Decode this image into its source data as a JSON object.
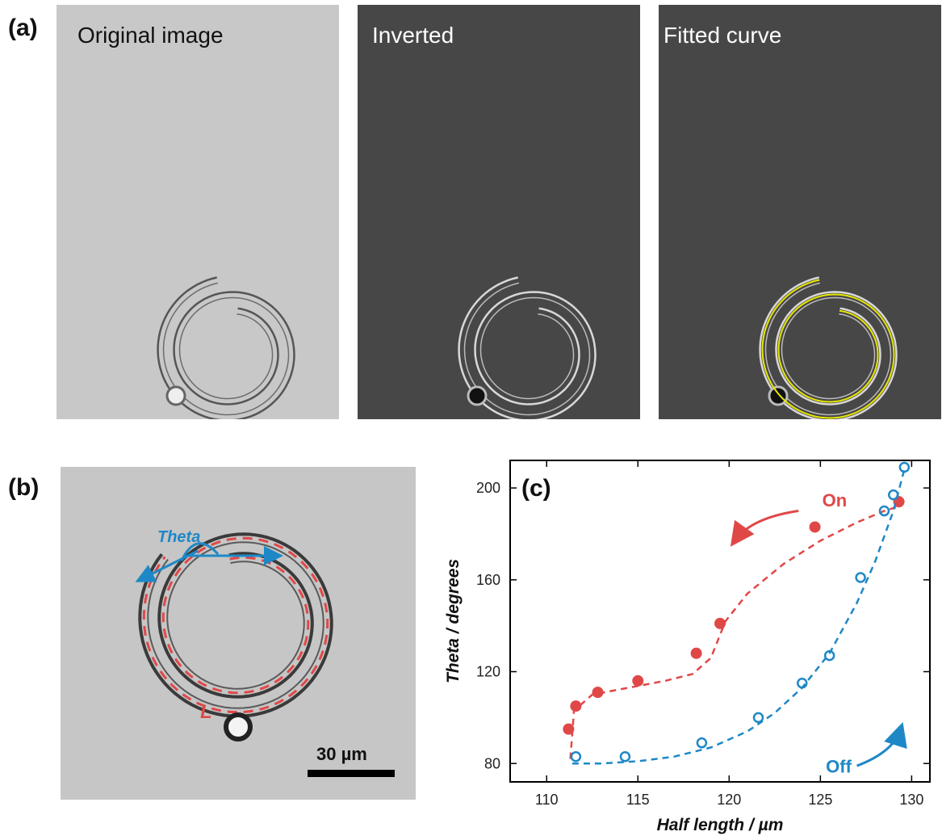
{
  "panel_a": {
    "label": "(a)",
    "images": [
      {
        "title": "Original image",
        "bg": "#c8c8c8",
        "title_color": "#111111",
        "line_color": "#555555"
      },
      {
        "title": "Inverted",
        "bg": "#474747",
        "title_color": "#ffffff",
        "line_color": "#d8d8d8"
      },
      {
        "title": "Fitted curve",
        "bg": "#474747",
        "title_color": "#ffffff",
        "line_color": "#d8d8d8",
        "fit_color": "#e8e800"
      }
    ]
  },
  "panel_b": {
    "label": "(b)",
    "theta_label": "Theta",
    "length_label": "L",
    "scale_bar": "30 µm",
    "bg": "#c6c6c6",
    "arrow_color": "#1e88c7",
    "dash_color": "#e04848"
  },
  "panel_c": {
    "label": "(c)"
  },
  "chart_data": {
    "type": "scatter",
    "xlabel": "Half length  / µm",
    "ylabel": "Theta  / degrees",
    "xlim": [
      108,
      131
    ],
    "ylim": [
      72,
      212
    ],
    "xticks": [
      110,
      115,
      120,
      125,
      130
    ],
    "yticks": [
      80,
      120,
      160,
      200
    ],
    "grid": false,
    "series": [
      {
        "name": "On",
        "color": "#e04848",
        "marker": "filled-circle",
        "x": [
          111.2,
          111.6,
          112.8,
          115.0,
          118.2,
          119.5,
          124.7,
          129.3
        ],
        "y": [
          95,
          105,
          111,
          116,
          128,
          141,
          183,
          194
        ],
        "fit_x": [
          111.3,
          111.5,
          112.5,
          114.5,
          116.5,
          118.0,
          119.0,
          119.8,
          121.0,
          123.0,
          125.0,
          127.0,
          128.5,
          129.3
        ],
        "fit_y": [
          82,
          103,
          110,
          113,
          116,
          119,
          126,
          142,
          154,
          167,
          177,
          185,
          190,
          192
        ]
      },
      {
        "name": "Off",
        "color": "#1e88c7",
        "marker": "open-circle",
        "x": [
          111.6,
          114.3,
          118.5,
          121.6,
          124.0,
          125.5,
          127.2,
          128.5,
          129.0,
          129.6
        ],
        "y": [
          83,
          83,
          89,
          100,
          115,
          127,
          161,
          190,
          197,
          209
        ],
        "fit_x": [
          111.4,
          113.0,
          115.0,
          117.0,
          119.0,
          121.0,
          122.5,
          124.0,
          125.5,
          127.0,
          128.0,
          129.0,
          129.6
        ],
        "fit_y": [
          80,
          80,
          81,
          83,
          87,
          94,
          102,
          113,
          128,
          150,
          168,
          190,
          208
        ]
      }
    ]
  }
}
